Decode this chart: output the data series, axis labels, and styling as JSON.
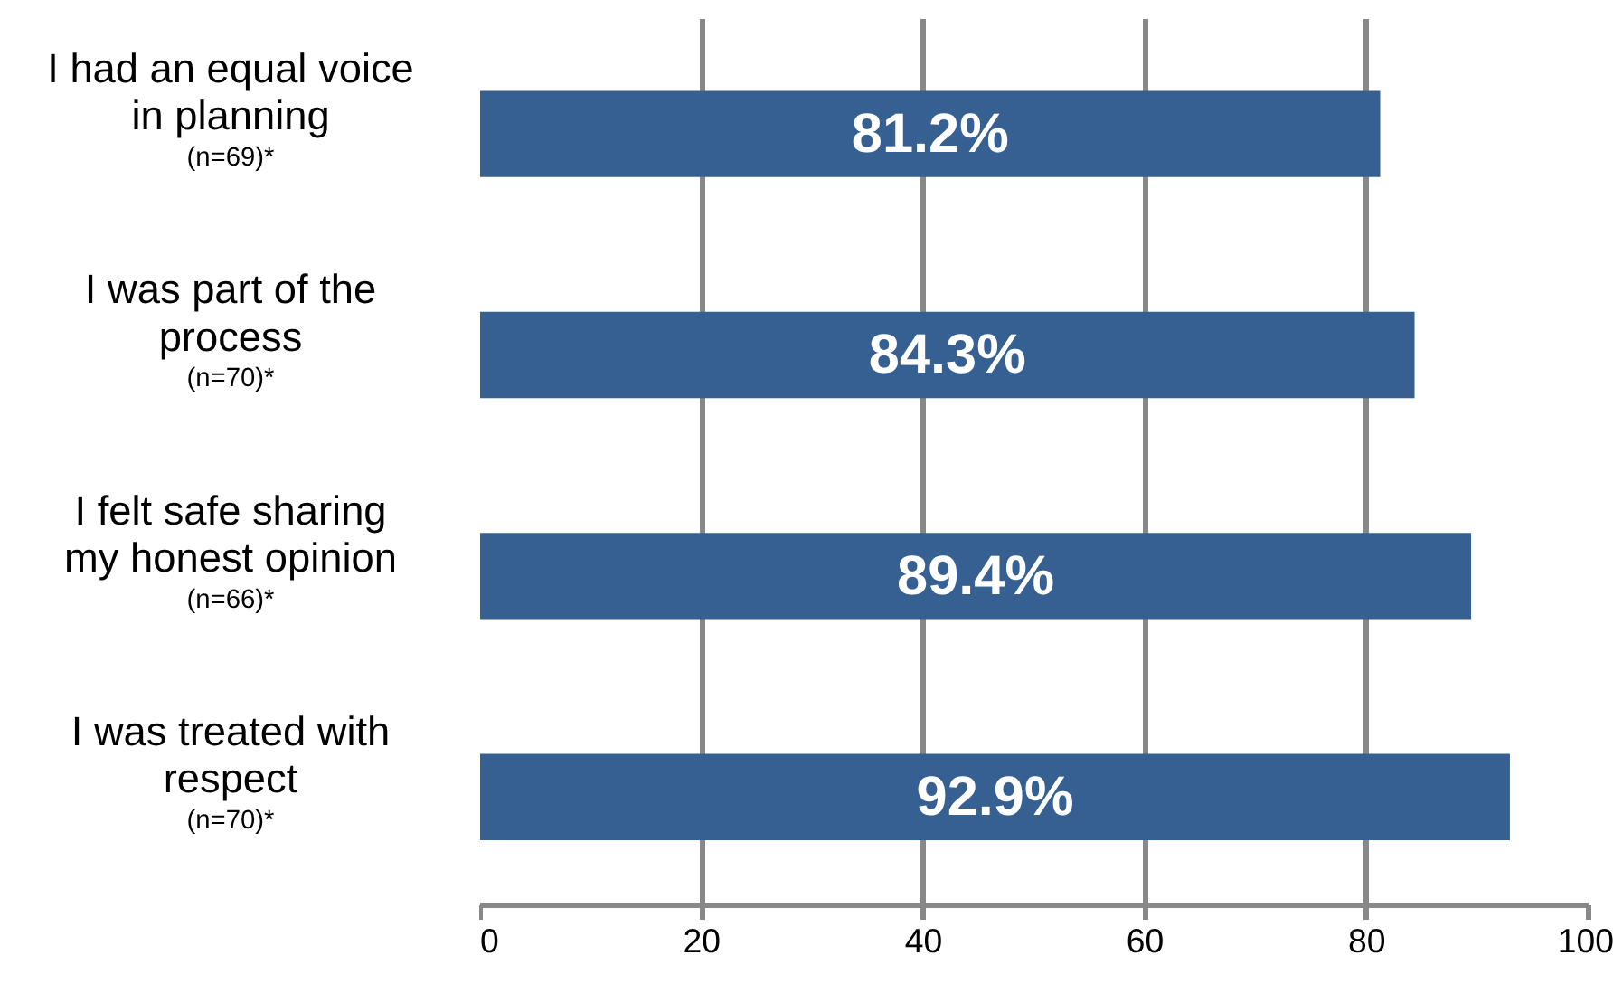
{
  "chart_data": {
    "type": "bar",
    "orientation": "horizontal",
    "categories": [
      "I had an equal voice\nin planning\n(n=69)*",
      "I was part of the\nprocess\n(n=70)*",
      "I felt safe sharing\nmy honest opinion\n(n=66)*",
      "I was treated with\nrespect\n(n=70)*"
    ],
    "values": [
      81.2,
      84.3,
      89.4,
      92.9
    ],
    "value_labels": [
      "81.2%",
      "84.3%",
      "89.4%",
      "92.9%"
    ],
    "color": "#376092",
    "xlim": [
      0,
      100
    ],
    "xticks": [
      0,
      20,
      40,
      60,
      80,
      100
    ],
    "grid": "x"
  }
}
